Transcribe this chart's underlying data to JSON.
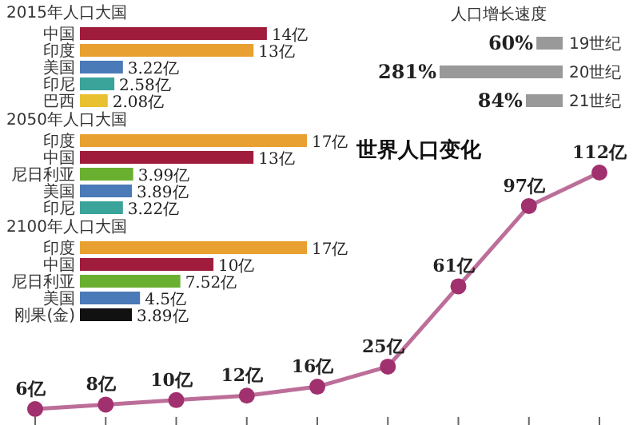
{
  "chart_data": [
    {
      "type": "bar",
      "orientation": "horizontal",
      "title": "2015年人口大国",
      "categories": [
        "中国",
        "印度",
        "美国",
        "印尼",
        "巴西"
      ],
      "values": [
        14,
        13,
        3.22,
        2.58,
        2.08
      ],
      "colors": [
        "#a01c3c",
        "#e8a030",
        "#4a7ab8",
        "#3aa39a",
        "#e8c030"
      ],
      "value_labels": [
        "14亿",
        "13亿",
        "3.22亿",
        "2.58亿",
        "2.08亿"
      ]
    },
    {
      "type": "bar",
      "orientation": "horizontal",
      "title": "2050年人口大国",
      "categories": [
        "印度",
        "中国",
        "尼日利亚",
        "美国",
        "印尼"
      ],
      "values": [
        17,
        13,
        3.99,
        3.89,
        3.22
      ],
      "colors": [
        "#e8a030",
        "#a01c3c",
        "#6ab030",
        "#4a7ab8",
        "#3aa39a"
      ],
      "value_labels": [
        "17亿",
        "13亿",
        "3.99亿",
        "3.89亿",
        "3.22亿"
      ]
    },
    {
      "type": "bar",
      "orientation": "horizontal",
      "title": "2100年人口大国",
      "categories": [
        "印度",
        "中国",
        "尼日利亚",
        "美国",
        "刚果(金)"
      ],
      "values": [
        17,
        10,
        7.52,
        4.5,
        3.89
      ],
      "colors": [
        "#e8a030",
        "#a01c3c",
        "#6ab030",
        "#4a7ab8",
        "#111111"
      ],
      "value_labels": [
        "17亿",
        "10亿",
        "7.52亿",
        "4.5亿",
        "3.89亿"
      ]
    },
    {
      "type": "bar",
      "orientation": "horizontal",
      "title": "人口增长速度",
      "categories": [
        "19世纪",
        "20世纪",
        "21世纪"
      ],
      "values": [
        60,
        281,
        84
      ],
      "colors": [
        "#999999",
        "#999999",
        "#999999"
      ],
      "value_labels": [
        "60%",
        "281%",
        "84%"
      ]
    },
    {
      "type": "line",
      "title": "世界人口变化",
      "categories": [
        null,
        null,
        null,
        null,
        null,
        null,
        null,
        null,
        null
      ],
      "values": [
        6,
        8,
        10,
        12,
        16,
        25,
        61,
        97,
        112
      ],
      "value_labels": [
        "6亿",
        "8亿",
        "10亿",
        "12亿",
        "16亿",
        "25亿",
        "61亿",
        "97亿",
        "112亿"
      ],
      "color": "#a0306e",
      "marker": "circle"
    }
  ]
}
